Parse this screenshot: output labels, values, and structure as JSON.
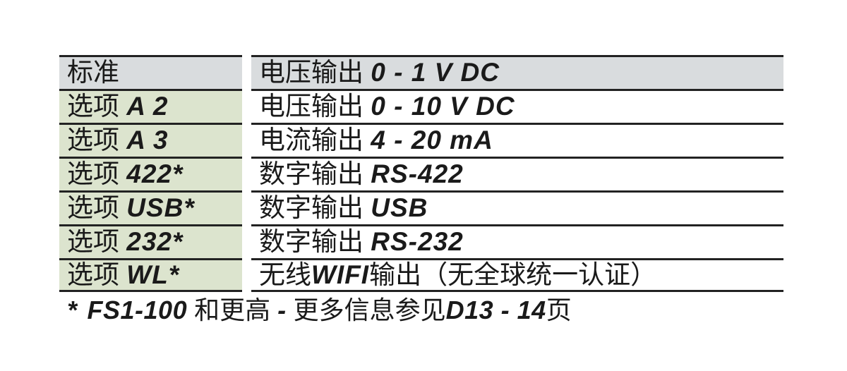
{
  "table": {
    "rows": [
      {
        "option_prefix": "标准",
        "option_code": "",
        "desc_prefix": "电压输出 ",
        "desc_value": "0 - 1 V DC",
        "desc_suffix": ""
      },
      {
        "option_prefix": "选项 ",
        "option_code": "A 2",
        "desc_prefix": "电压输出 ",
        "desc_value": "0 - 10 V DC",
        "desc_suffix": ""
      },
      {
        "option_prefix": "选项 ",
        "option_code": "A 3",
        "desc_prefix": "电流输出 ",
        "desc_value": "4 - 20 mA",
        "desc_suffix": ""
      },
      {
        "option_prefix": "选项 ",
        "option_code": "422*",
        "desc_prefix": "数字输出 ",
        "desc_value": "RS-422",
        "desc_suffix": ""
      },
      {
        "option_prefix": "选项 ",
        "option_code": "USB*",
        "desc_prefix": "数字输出 ",
        "desc_value": "USB",
        "desc_suffix": ""
      },
      {
        "option_prefix": "选项 ",
        "option_code": "232*",
        "desc_prefix": "数字输出 ",
        "desc_value": "RS-232",
        "desc_suffix": ""
      },
      {
        "option_prefix": "选项 ",
        "option_code": "WL*",
        "desc_prefix": "无线",
        "desc_value": "WIFI",
        "desc_suffix": "输出（无全球统一认证）"
      }
    ]
  },
  "footnote": {
    "star": "*",
    "code1": "FS1-100",
    "text1": " 和更高 ",
    "dash": "-",
    "text2": " 更多信息参见",
    "code2": "D13 - 14",
    "text3": "页"
  },
  "colors": {
    "header_bg": "#d9dcde",
    "option_bg": "#dce4ce",
    "border": "#222222",
    "text": "#1a1a1a",
    "page_bg": "#ffffff"
  }
}
